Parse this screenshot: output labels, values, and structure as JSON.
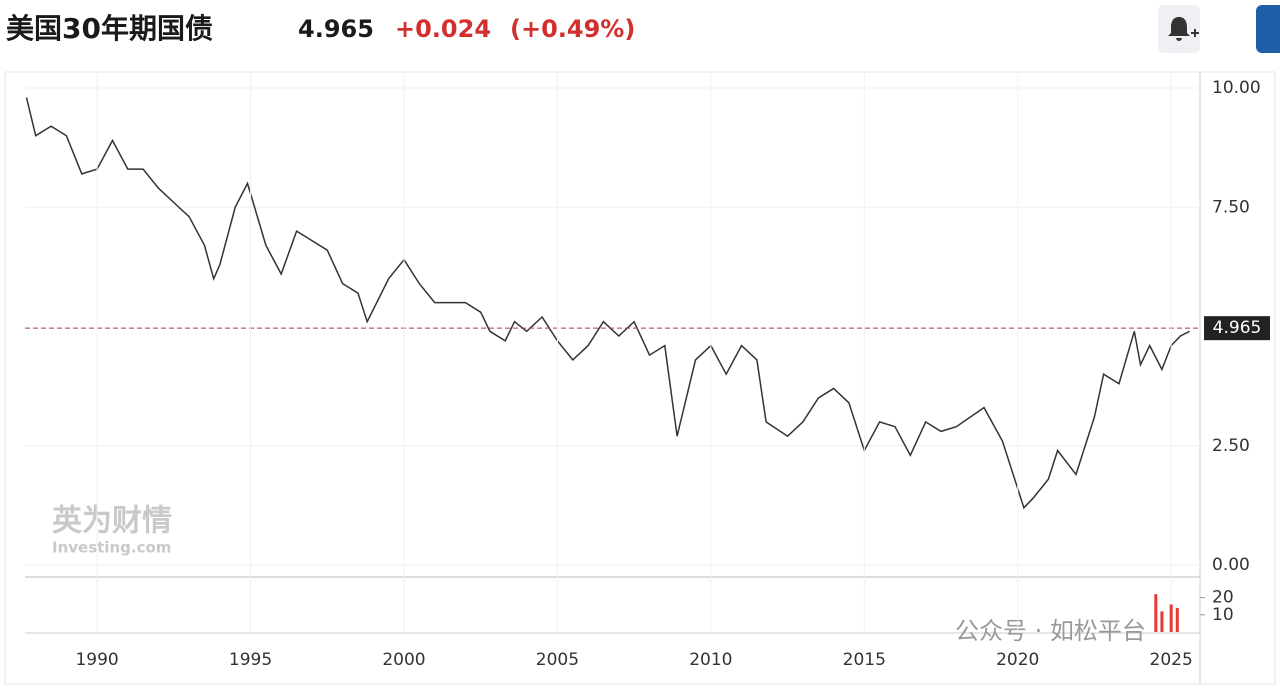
{
  "header": {
    "title": "美国30年期国债",
    "price": 4.965,
    "change": "+0.024",
    "change_pct": "(+0.49%)"
  },
  "watermarks": {
    "brand_cn": "英为财情",
    "brand_en": "Investing.com",
    "wechat": "公众号 · 如松平台"
  },
  "chart_data": [
    {
      "type": "line",
      "color": "#333333",
      "ref_color": "#b03a3a",
      "x": [
        1987.7,
        1988.0,
        1988.5,
        1989.0,
        1989.5,
        1990.0,
        1990.5,
        1991.0,
        1991.5,
        1992.0,
        1992.5,
        1993.0,
        1993.5,
        1993.8,
        1994.0,
        1994.5,
        1994.9,
        1995.5,
        1996.0,
        1996.5,
        1997.0,
        1997.5,
        1998.0,
        1998.5,
        1998.8,
        1999.5,
        2000.0,
        2000.5,
        2001.0,
        2001.5,
        2002.0,
        2002.5,
        2002.8,
        2003.3,
        2003.6,
        2004.0,
        2004.5,
        2005.0,
        2005.5,
        2006.0,
        2006.5,
        2007.0,
        2007.5,
        2008.0,
        2008.5,
        2008.9,
        2009.5,
        2010.0,
        2010.5,
        2011.0,
        2011.5,
        2011.8,
        2012.5,
        2013.0,
        2013.5,
        2014.0,
        2014.5,
        2015.0,
        2015.5,
        2016.0,
        2016.5,
        2017.0,
        2017.5,
        2018.0,
        2018.9,
        2019.5,
        2020.2,
        2020.5,
        2021.0,
        2021.3,
        2021.9,
        2022.5,
        2022.8,
        2023.3,
        2023.8,
        2024.0,
        2024.3,
        2024.7,
        2025.0,
        2025.3,
        2025.6
      ],
      "values": [
        9.8,
        9.0,
        9.2,
        9.0,
        8.2,
        8.3,
        8.9,
        8.3,
        8.3,
        7.9,
        7.6,
        7.3,
        6.7,
        6.0,
        6.3,
        7.5,
        8.0,
        6.7,
        6.1,
        7.0,
        6.8,
        6.6,
        5.9,
        5.7,
        5.1,
        6.0,
        6.4,
        5.9,
        5.5,
        5.5,
        5.5,
        5.3,
        4.9,
        4.7,
        5.1,
        4.9,
        5.2,
        4.7,
        4.3,
        4.6,
        5.1,
        4.8,
        5.1,
        4.4,
        4.6,
        2.7,
        4.3,
        4.6,
        4.0,
        4.6,
        4.3,
        3.0,
        2.7,
        3.0,
        3.5,
        3.7,
        3.4,
        2.4,
        3.0,
        2.9,
        2.3,
        3.0,
        2.8,
        2.9,
        3.3,
        2.6,
        1.2,
        1.4,
        1.8,
        2.4,
        1.9,
        3.1,
        4.0,
        3.8,
        4.9,
        4.2,
        4.6,
        4.1,
        4.6,
        4.8,
        4.9
      ],
      "xlim": [
        1987.65,
        2025.94
      ],
      "xticks": [
        1990,
        1995,
        2000,
        2005,
        2010,
        2015,
        2020,
        2025
      ],
      "ylim": [
        0,
        10
      ],
      "yticks": [
        {
          "value": 0,
          "label": "0.00"
        },
        {
          "value": 2.5,
          "label": "2.50"
        },
        {
          "value": 7.5,
          "label": "7.50"
        },
        {
          "value": 10,
          "label": "10.00"
        }
      ]
    },
    {
      "type": "bar",
      "color": "#e53935",
      "x": [
        2024.5,
        2024.7,
        2025.0,
        2025.2
      ],
      "values": [
        22,
        12,
        16,
        14
      ],
      "ylim": [
        0,
        32
      ],
      "yticks": [
        10,
        20
      ]
    }
  ]
}
